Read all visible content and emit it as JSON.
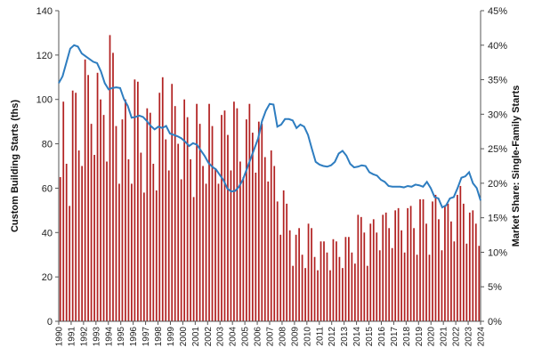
{
  "chart_data": {
    "type": "bar+line",
    "title": "",
    "x_tick_labels": [
      "1990",
      "1991",
      "1992",
      "1993",
      "1994",
      "1995",
      "1996",
      "1997",
      "1998",
      "1999",
      "2000",
      "2001",
      "2002",
      "2003",
      "2004",
      "2005",
      "2006",
      "2007",
      "2008",
      "2009",
      "2010",
      "2011",
      "2012",
      "2013",
      "2014",
      "2015",
      "2016",
      "2017",
      "2018",
      "2019",
      "2020",
      "2021",
      "2022",
      "2023",
      "2024"
    ],
    "y_left": {
      "label": "Custom Building Starts (ths)",
      "min": 0,
      "max": 140,
      "ticks": [
        "0",
        "20",
        "40",
        "60",
        "80",
        "100",
        "120",
        "140"
      ]
    },
    "y_right": {
      "label": "Market Share: Single-Family Starts",
      "min": 0,
      "max": 45,
      "ticks": [
        "0%",
        "5%",
        "10%",
        "15%",
        "20%",
        "25%",
        "30%",
        "35%",
        "40%",
        "45%"
      ]
    },
    "colors": {
      "bars": "#b22222",
      "line": "#2e7dc0",
      "axis": "#555555"
    },
    "bar_series": {
      "axis": "left",
      "values": [
        65,
        99,
        71,
        52,
        104,
        103,
        77,
        70,
        118,
        111,
        89,
        75,
        112,
        100,
        93,
        72,
        129,
        121,
        88,
        62,
        91,
        100,
        73,
        62,
        109,
        108,
        76,
        58,
        96,
        94,
        71,
        59,
        103,
        110,
        82,
        68,
        107,
        97,
        80,
        64,
        100,
        92,
        73,
        56,
        98,
        89,
        70,
        62,
        98,
        88,
        69,
        62,
        93,
        95,
        84,
        68,
        99,
        96,
        72,
        65,
        91,
        98,
        85,
        67,
        90,
        89,
        74,
        63,
        77,
        70,
        54,
        39,
        59,
        53,
        41,
        25,
        39,
        42,
        30,
        24,
        44,
        42,
        29,
        23,
        36,
        36,
        31,
        23,
        37,
        36,
        29,
        24,
        38,
        38,
        31,
        26,
        48,
        47,
        40,
        25,
        44,
        46,
        40,
        32,
        48,
        49,
        42,
        33,
        50,
        51,
        41,
        31,
        51,
        52,
        42,
        30,
        55,
        55,
        44,
        30,
        54,
        57,
        46,
        32,
        52,
        53,
        45,
        36,
        57,
        61,
        53,
        35,
        49,
        50,
        44,
        34
      ]
    },
    "line_series": {
      "axis": "right",
      "values": [
        34.5,
        35.5,
        37.5,
        39.5,
        40,
        39.8,
        38.8,
        38.4,
        38,
        37.6,
        37.4,
        36.2,
        34.5,
        33.6,
        33.8,
        33.9,
        33.8,
        32.2,
        31.2,
        29.5,
        29.6,
        29.8,
        29.6,
        29,
        28.3,
        27.8,
        28.2,
        28,
        28.3,
        27.2,
        27,
        26.8,
        26.5,
        26,
        25.4,
        25.8,
        25.6,
        24.8,
        24,
        23,
        22.4,
        22,
        21.2,
        20.4,
        19.2,
        18.8,
        18.9,
        19.5,
        20.5,
        22,
        23.5,
        25,
        26.5,
        29,
        30.5,
        31.5,
        31.4,
        28.2,
        28.5,
        29.3,
        29.3,
        29.1,
        28,
        28.5,
        28.2,
        27,
        25,
        23.1,
        22.7,
        22.5,
        22.4,
        22.6,
        23.1,
        24.3,
        24.7,
        24,
        22.8,
        22.3,
        22.4,
        22.6,
        22.5,
        21.6,
        21.3,
        21.1,
        20.5,
        20.2,
        19.6,
        19.5,
        19.5,
        19.5,
        19.4,
        19.6,
        19.5,
        19.8,
        19.7,
        19.5,
        20.2,
        19.3,
        18,
        17.8,
        16.5,
        16.8,
        17.8,
        18,
        19.3,
        20.8,
        21,
        21.6,
        20,
        19.3,
        17.5
      ]
    }
  }
}
